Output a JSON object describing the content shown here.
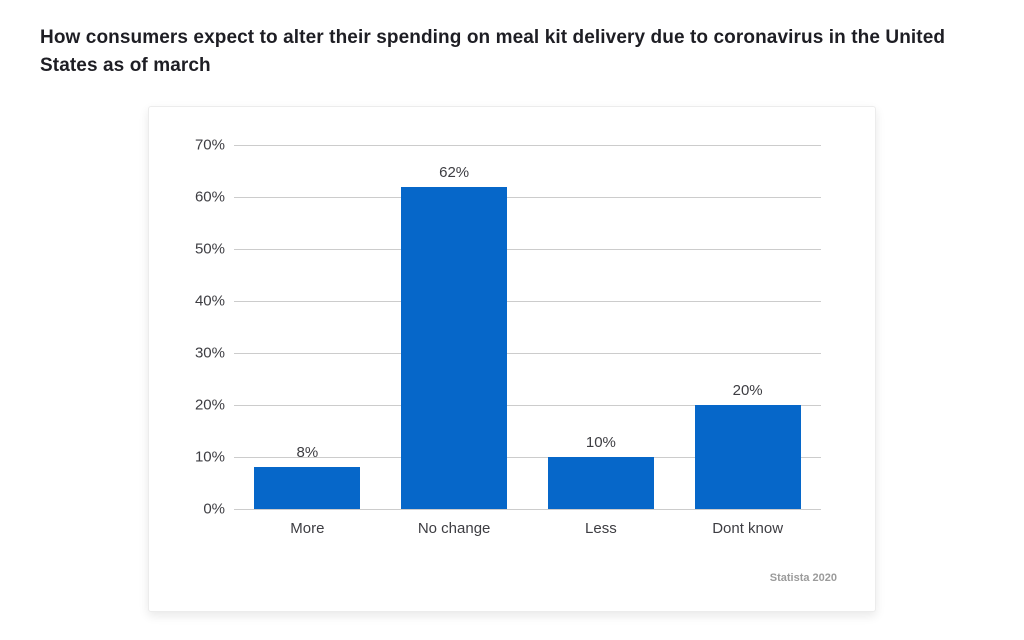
{
  "title": "How consumers expect to alter their spending on meal kit delivery due to coronavirus in the United States as of march",
  "source": "Statista 2020",
  "colors": {
    "bar": "#0667c9",
    "gridline": "#cccccc",
    "title_text": "#1e1e24",
    "axis_text": "#3d3d42",
    "source_text": "#9b9b9b"
  },
  "chart_data": {
    "type": "bar",
    "title": "How consumers expect to alter their spending on meal kit delivery due to coronavirus in the United States as of march",
    "categories": [
      "More",
      "No change",
      "Less",
      "Dont know"
    ],
    "values": [
      8,
      62,
      10,
      20
    ],
    "value_labels": [
      "8%",
      "62%",
      "10%",
      "20%"
    ],
    "xlabel": "",
    "ylabel": "",
    "ylim": [
      0,
      70
    ],
    "yticks": [
      0,
      10,
      20,
      30,
      40,
      50,
      60,
      70
    ],
    "ytick_labels": [
      "0%",
      "10%",
      "20%",
      "30%",
      "40%",
      "50%",
      "60%",
      "70%"
    ],
    "grid": true,
    "legend": false,
    "bar_color": "#0667c9",
    "source": "Statista 2020"
  }
}
